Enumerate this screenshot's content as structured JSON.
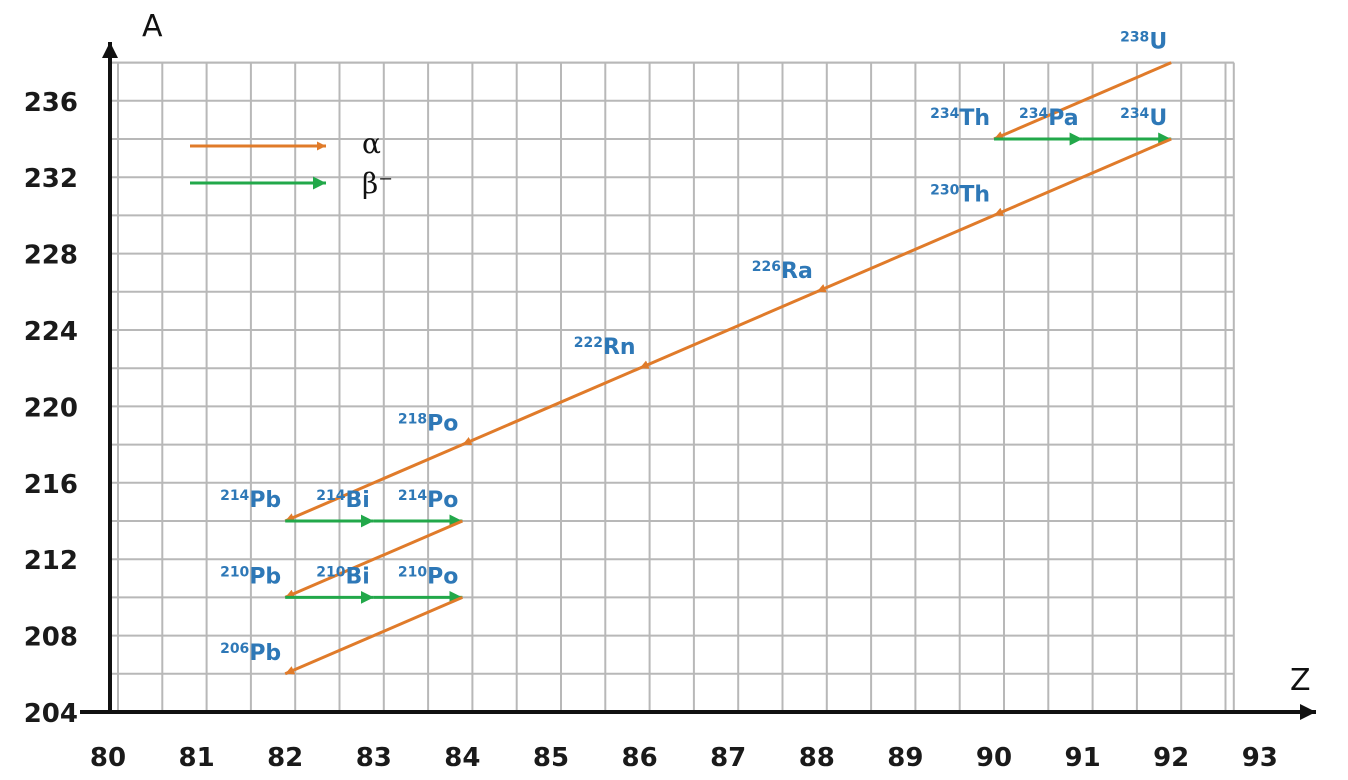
{
  "chart_data": {
    "type": "line",
    "xlabel": "Z",
    "ylabel": "A",
    "xlim": [
      80,
      93
    ],
    "ylim": [
      204,
      238
    ],
    "x_ticks": [
      80,
      81,
      82,
      83,
      84,
      85,
      86,
      87,
      88,
      89,
      90,
      91,
      92,
      93
    ],
    "y_ticks": [
      204,
      208,
      212,
      216,
      220,
      224,
      228,
      232,
      236
    ],
    "grid": true,
    "legend_position": "top-left",
    "legend": [
      {
        "key": "alpha",
        "label": "α",
        "color": "#e07b2a"
      },
      {
        "key": "beta",
        "label": "β⁻",
        "color": "#22a84a"
      }
    ],
    "nuclides": [
      {
        "mass": "238",
        "symbol": "U",
        "z": 92,
        "a": 238
      },
      {
        "mass": "234",
        "symbol": "Th",
        "z": 90,
        "a": 234
      },
      {
        "mass": "234",
        "symbol": "Pa",
        "z": 91,
        "a": 234
      },
      {
        "mass": "234",
        "symbol": "U",
        "z": 92,
        "a": 234
      },
      {
        "mass": "230",
        "symbol": "Th",
        "z": 90,
        "a": 230
      },
      {
        "mass": "226",
        "symbol": "Ra",
        "z": 88,
        "a": 226
      },
      {
        "mass": "222",
        "symbol": "Rn",
        "z": 86,
        "a": 222
      },
      {
        "mass": "218",
        "symbol": "Po",
        "z": 84,
        "a": 218
      },
      {
        "mass": "214",
        "symbol": "Pb",
        "z": 82,
        "a": 214
      },
      {
        "mass": "214",
        "symbol": "Bi",
        "z": 83,
        "a": 214
      },
      {
        "mass": "214",
        "symbol": "Po",
        "z": 84,
        "a": 214
      },
      {
        "mass": "210",
        "symbol": "Pb",
        "z": 82,
        "a": 210
      },
      {
        "mass": "210",
        "symbol": "Bi",
        "z": 83,
        "a": 210
      },
      {
        "mass": "210",
        "symbol": "Po",
        "z": 84,
        "a": 210
      },
      {
        "mass": "206",
        "symbol": "Pb",
        "z": 82,
        "a": 206
      }
    ],
    "decays": [
      {
        "type": "alpha",
        "from": [
          92,
          238
        ],
        "to": [
          90,
          234
        ]
      },
      {
        "type": "beta",
        "from": [
          90,
          234
        ],
        "to": [
          91,
          234
        ]
      },
      {
        "type": "beta",
        "from": [
          91,
          234
        ],
        "to": [
          92,
          234
        ]
      },
      {
        "type": "alpha",
        "from": [
          92,
          234
        ],
        "to": [
          90,
          230
        ]
      },
      {
        "type": "alpha",
        "from": [
          90,
          230
        ],
        "to": [
          88,
          226
        ]
      },
      {
        "type": "alpha",
        "from": [
          88,
          226
        ],
        "to": [
          86,
          222
        ]
      },
      {
        "type": "alpha",
        "from": [
          86,
          222
        ],
        "to": [
          84,
          218
        ]
      },
      {
        "type": "alpha",
        "from": [
          84,
          218
        ],
        "to": [
          82,
          214
        ]
      },
      {
        "type": "beta",
        "from": [
          82,
          214
        ],
        "to": [
          83,
          214
        ]
      },
      {
        "type": "beta",
        "from": [
          83,
          214
        ],
        "to": [
          84,
          214
        ]
      },
      {
        "type": "alpha",
        "from": [
          84,
          214
        ],
        "to": [
          82,
          210
        ]
      },
      {
        "type": "beta",
        "from": [
          82,
          210
        ],
        "to": [
          83,
          210
        ]
      },
      {
        "type": "beta",
        "from": [
          83,
          210
        ],
        "to": [
          84,
          210
        ]
      },
      {
        "type": "alpha",
        "from": [
          84,
          210
        ],
        "to": [
          82,
          206
        ]
      }
    ]
  }
}
